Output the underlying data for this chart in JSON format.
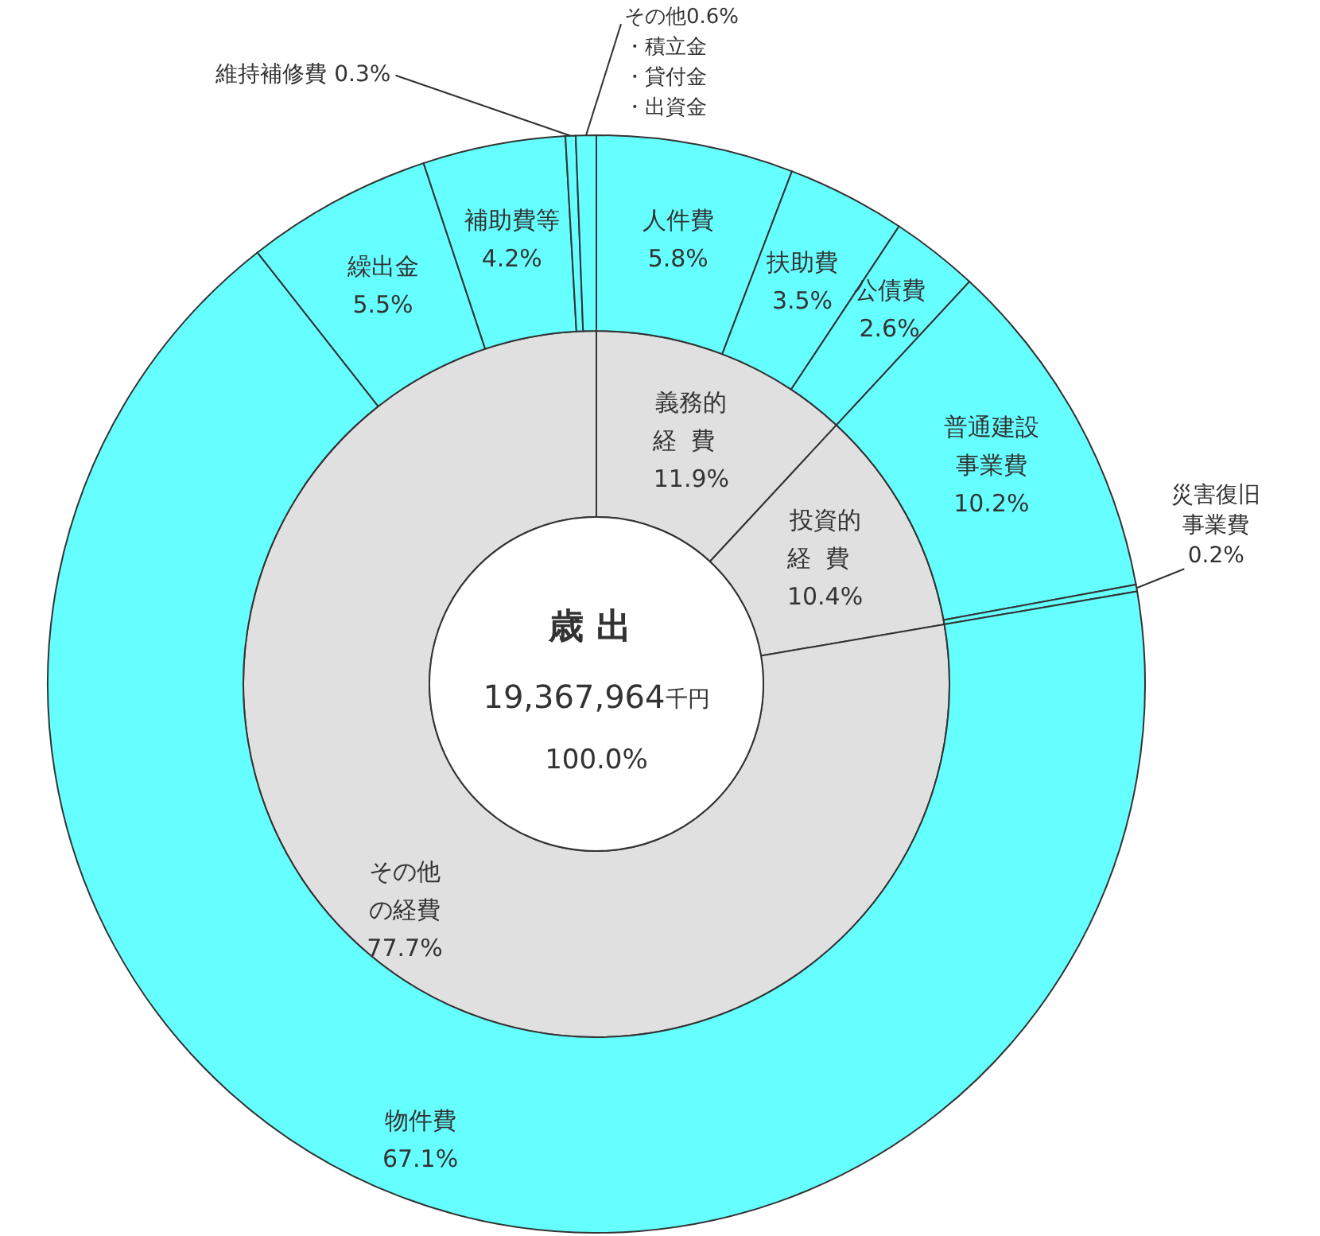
{
  "chart_data": [
    {
      "type": "donut",
      "title": "歳出",
      "annotations": [
        "19,367,964千円",
        "100.0%"
      ],
      "categories": [
        "義務的経費",
        "投資的経費",
        "その他の経費"
      ],
      "values": [
        11.9,
        10.4,
        77.7
      ],
      "value_labels": [
        "11.9%",
        "10.4%",
        "77.7%"
      ],
      "colors": [
        "#e0e0e0",
        "#e0e0e0",
        "#e0e0e0"
      ]
    },
    {
      "type": "donut",
      "categories": [
        "人件費",
        "扶助費",
        "公債費",
        "普通建設事業費",
        "災害復旧事業費",
        "物件費",
        "繰出金",
        "補助費等",
        "維持補修費",
        "その他"
      ],
      "annotations": [
        "・積立金",
        "・貸付金",
        "・出資金"
      ],
      "values": [
        5.8,
        3.5,
        2.6,
        10.2,
        0.2,
        67.1,
        5.5,
        4.2,
        0.3,
        0.6
      ],
      "value_labels": [
        "5.8%",
        "3.5%",
        "2.6%",
        "10.2%",
        "0.2%",
        "67.1%",
        "5.5%",
        "4.2%",
        "0.3%",
        "0.6%"
      ],
      "colors": [
        "#66ffff",
        "#66ffff",
        "#66ffff",
        "#66ffff",
        "#66ffff",
        "#66ffff",
        "#66ffff",
        "#66ffff",
        "#66ffff",
        "#66ffff"
      ]
    }
  ]
}
